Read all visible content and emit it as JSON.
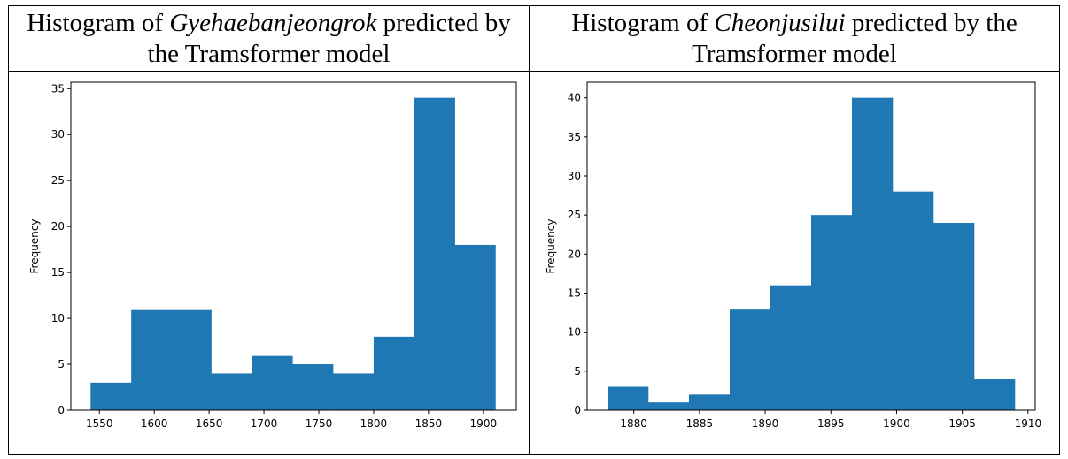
{
  "panels": [
    {
      "title_prefix": "Histogram of ",
      "title_italic": "Gyehaebanjeongrok",
      "title_suffix": " predicted by the Tramsformer model"
    },
    {
      "title_prefix": "Histogram of ",
      "title_italic": "Cheonjusilui",
      "title_suffix": " predicted by the Tramsformer model"
    }
  ],
  "chart_data": [
    {
      "type": "bar",
      "title": "Histogram of Gyehaebanjeongrok predicted by the Tramsformer model",
      "xlabel": "",
      "ylabel": "Frequency",
      "bar_color": "#1f77b4",
      "bins": [
        {
          "x0": 1542,
          "x1": 1579,
          "count": 3
        },
        {
          "x0": 1579,
          "x1": 1615,
          "count": 11
        },
        {
          "x0": 1615,
          "x1": 1652,
          "count": 11
        },
        {
          "x0": 1652,
          "x1": 1689,
          "count": 4
        },
        {
          "x0": 1689,
          "x1": 1726,
          "count": 6
        },
        {
          "x0": 1726,
          "x1": 1763,
          "count": 5
        },
        {
          "x0": 1763,
          "x1": 1800,
          "count": 4
        },
        {
          "x0": 1800,
          "x1": 1837,
          "count": 8
        },
        {
          "x0": 1837,
          "x1": 1874,
          "count": 34
        },
        {
          "x0": 1874,
          "x1": 1911,
          "count": 18
        }
      ],
      "xlim": [
        1524,
        1930
      ],
      "ylim": [
        0,
        35.7
      ],
      "xticks": [
        1550,
        1600,
        1650,
        1700,
        1750,
        1800,
        1850,
        1900
      ],
      "yticks": [
        0,
        5,
        10,
        15,
        20,
        25,
        30,
        35
      ],
      "grid": false
    },
    {
      "type": "bar",
      "title": "Histogram of Cheonjusilui predicted by the Tramsformer model",
      "xlabel": "",
      "ylabel": "Frequency",
      "bar_color": "#1f77b4",
      "bins": [
        {
          "x0": 1878,
          "x1": 1881.1,
          "count": 3
        },
        {
          "x0": 1881.1,
          "x1": 1884.2,
          "count": 1
        },
        {
          "x0": 1884.2,
          "x1": 1887.3,
          "count": 2
        },
        {
          "x0": 1887.3,
          "x1": 1890.4,
          "count": 13
        },
        {
          "x0": 1890.4,
          "x1": 1893.5,
          "count": 16
        },
        {
          "x0": 1893.5,
          "x1": 1896.6,
          "count": 25
        },
        {
          "x0": 1896.6,
          "x1": 1899.7,
          "count": 40
        },
        {
          "x0": 1899.7,
          "x1": 1902.8,
          "count": 28
        },
        {
          "x0": 1902.8,
          "x1": 1905.9,
          "count": 24
        },
        {
          "x0": 1905.9,
          "x1": 1909,
          "count": 4
        }
      ],
      "xlim": [
        1876.45,
        1910.55
      ],
      "ylim": [
        0,
        42
      ],
      "xticks": [
        1880,
        1885,
        1890,
        1895,
        1900,
        1905,
        1910
      ],
      "yticks": [
        0,
        5,
        10,
        15,
        20,
        25,
        30,
        35,
        40
      ],
      "grid": false
    }
  ]
}
